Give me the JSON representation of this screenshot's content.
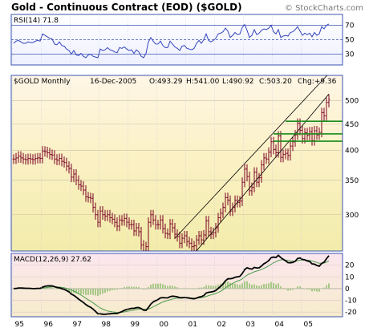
{
  "header": {
    "title": "Gold - Continuous Contract (EOD) ($GOLD)",
    "watermark": "© StockCharts.com"
  },
  "rsi": {
    "label": "RSI(14) 71.8",
    "levels": [
      70,
      50,
      30
    ],
    "ylim": [
      15,
      85
    ]
  },
  "price_info": {
    "symbol": "$GOLD Monthly",
    "date": "16-Dec-2005",
    "open": "O:493.29",
    "high": "H:541.00",
    "low": "L:490.92",
    "close": "C:503.20",
    "change": "Chg:+9.36"
  },
  "macd": {
    "label": "MACD(12,26,9) 27.62",
    "yticks": [
      "20",
      "10",
      "0",
      "-10",
      "-20"
    ]
  },
  "colors": {
    "price_bars": "#7a0022",
    "line": "#3344bb",
    "trend_lines": "#000000",
    "support_lines": "#1a8a1a",
    "histogram": "#a8c888",
    "grid": "#3a54b0"
  },
  "chart_data": {
    "type": "bar",
    "x_ticks": [
      "95",
      "96",
      "97",
      "98",
      "99",
      "00",
      "01",
      "02",
      "03",
      "04",
      "05"
    ],
    "price_yticks": [
      500,
      450,
      400,
      350,
      300
    ],
    "price_scale": "log",
    "price_ylim": [
      255,
      560
    ],
    "rsi_yticks": [
      70,
      50,
      30
    ],
    "macd_ylim": [
      -24,
      30
    ],
    "monthly_close": [
      385,
      387,
      390,
      387,
      385,
      384,
      386,
      385,
      384,
      386,
      387,
      386,
      399,
      398,
      396,
      393,
      392,
      385,
      383,
      386,
      381,
      379,
      373,
      369,
      355,
      360,
      350,
      343,
      341,
      335,
      325,
      324,
      323,
      310,
      300,
      290,
      305,
      300,
      298,
      300,
      296,
      294,
      290,
      285,
      293,
      292,
      295,
      290,
      287,
      287,
      279,
      283,
      278,
      262,
      253,
      260,
      290,
      300,
      293,
      287,
      287,
      293,
      282,
      276,
      275,
      288,
      283,
      275,
      272,
      264,
      270,
      273,
      266,
      264,
      260,
      261,
      268,
      273,
      268,
      274,
      292,
      278,
      275,
      277,
      283,
      296,
      302,
      310,
      324,
      320,
      305,
      310,
      320,
      317,
      319,
      347,
      368,
      356,
      334,
      339,
      363,
      347,
      354,
      375,
      387,
      385,
      397,
      416,
      402,
      396,
      427,
      388,
      393,
      395,
      391,
      408,
      416,
      429,
      452,
      438,
      422,
      433,
      428,
      435,
      418,
      437,
      429,
      434,
      474,
      467,
      496,
      503
    ],
    "trend_lines": [
      {
        "from": [
          "2000-08",
          270
        ],
        "to": [
          "2005-12",
          565
        ]
      },
      {
        "from": [
          "2001-04",
          252
        ],
        "to": [
          "2005-12",
          515
        ]
      }
    ],
    "support_lines": [
      {
        "from": [
          "2004-01",
          431
        ],
        "to": [
          "2005-12",
          431
        ]
      },
      {
        "from": [
          "2004-01",
          417
        ],
        "to": [
          "2005-12",
          417
        ]
      },
      {
        "from": [
          "2004-06",
          456
        ],
        "to": [
          "2005-12",
          456
        ]
      }
    ],
    "rsi_values": [
      45,
      48,
      49,
      47,
      45,
      45,
      47,
      46,
      46,
      48,
      49,
      48,
      58,
      56,
      54,
      52,
      51,
      44,
      43,
      47,
      42,
      41,
      37,
      35,
      30,
      35,
      29,
      28,
      31,
      27,
      25,
      29,
      30,
      27,
      26,
      25,
      37,
      35,
      36,
      39,
      36,
      35,
      33,
      32,
      39,
      38,
      40,
      37,
      35,
      36,
      31,
      36,
      33,
      27,
      25,
      31,
      47,
      53,
      48,
      44,
      44,
      48,
      42,
      39,
      39,
      48,
      44,
      40,
      38,
      35,
      41,
      42,
      38,
      37,
      36,
      38,
      45,
      49,
      45,
      50,
      58,
      49,
      47,
      49,
      52,
      58,
      59,
      61,
      66,
      62,
      53,
      56,
      60,
      57,
      58,
      67,
      71,
      63,
      53,
      56,
      64,
      57,
      59,
      63,
      65,
      64,
      66,
      70,
      61,
      58,
      64,
      53,
      55,
      56,
      55,
      60,
      61,
      64,
      68,
      62,
      56,
      59,
      57,
      59,
      54,
      60,
      56,
      58,
      68,
      65,
      70,
      71.8
    ]
  }
}
